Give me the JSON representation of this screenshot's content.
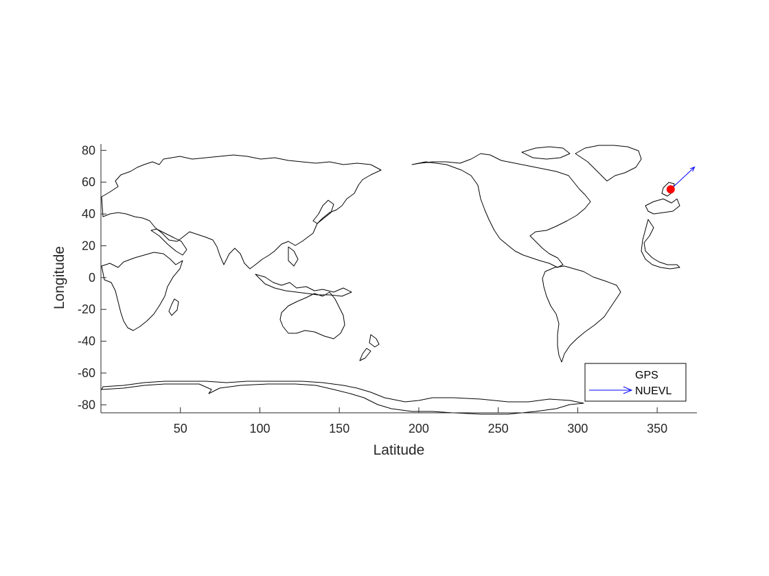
{
  "chart_data": {
    "type": "scatter",
    "title": "",
    "xlabel": "Latitude",
    "ylabel": "Longitude",
    "xlim": [
      0,
      375
    ],
    "ylim": [
      -85,
      84
    ],
    "xticks": [
      50,
      100,
      150,
      200,
      250,
      300,
      350
    ],
    "xtick_labels": [
      "50",
      "100",
      "150",
      "200",
      "250",
      "300",
      "350"
    ],
    "yticks": [
      -80,
      -60,
      -40,
      -20,
      0,
      20,
      40,
      60,
      80
    ],
    "ytick_labels": [
      "-80",
      "-60",
      "-40",
      "-20",
      "0",
      "20",
      "40",
      "60",
      "80"
    ],
    "grid": false,
    "legend_position": "bottom-right",
    "series": [
      {
        "name": "GPS",
        "kind": "marker",
        "color": "#ff0000",
        "points": [
          {
            "x": 358.5,
            "y": 55.5
          }
        ]
      },
      {
        "name": "NUEVL",
        "kind": "vector",
        "color": "#0000ff",
        "vectors": [
          {
            "x": 358.5,
            "y": 55.5,
            "dx": 15,
            "dy": 14
          }
        ]
      }
    ],
    "background_layer": "coastline outlines (0–360 longitude, -90–90 latitude)"
  }
}
